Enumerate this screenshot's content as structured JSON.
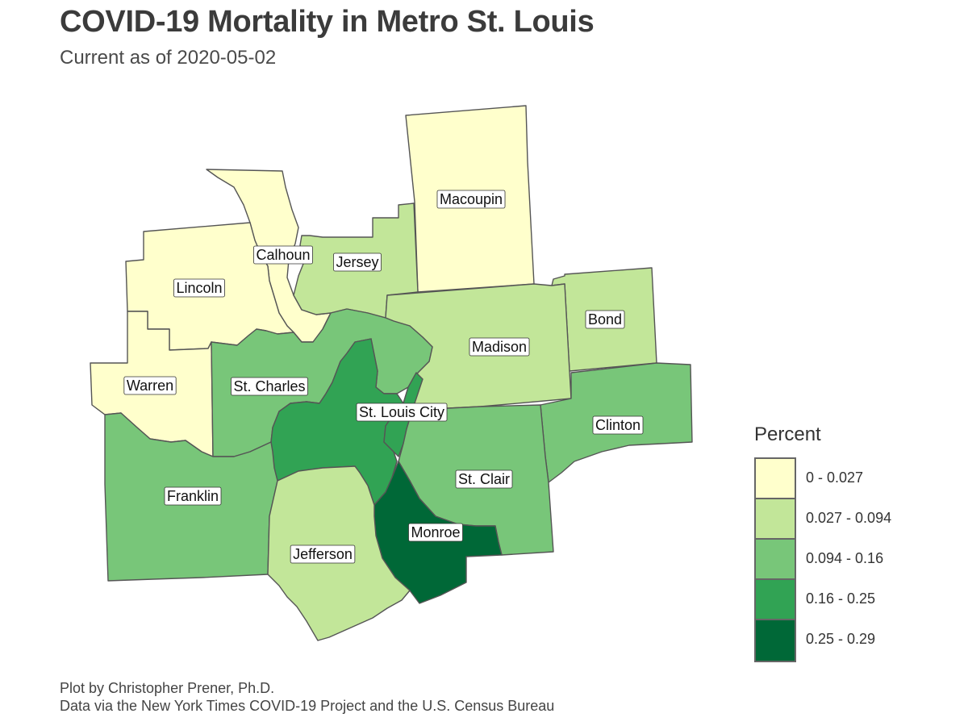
{
  "title": "COVID-19 Mortality in Metro St. Louis",
  "subtitle": "Current as of 2020-05-02",
  "caption": {
    "line1": "Plot by Christopher Prener, Ph.D.",
    "line2": "Data via the New York Times COVID-19 Project and the U.S. Census Bureau"
  },
  "legend": {
    "title": "Percent",
    "items": [
      {
        "label": "0 - 0.027",
        "color": "#ffffcc"
      },
      {
        "label": "0.027 - 0.094",
        "color": "#c2e699"
      },
      {
        "label": "0.094 - 0.16",
        "color": "#78c679"
      },
      {
        "label": "0.16 - 0.25",
        "color": "#31a354"
      },
      {
        "label": "0.25 - 0.29",
        "color": "#006837"
      }
    ]
  },
  "counties": [
    {
      "name": "Macoupin",
      "class": 0
    },
    {
      "name": "Calhoun",
      "class": 0
    },
    {
      "name": "Jersey",
      "class": 1
    },
    {
      "name": "Lincoln",
      "class": 0
    },
    {
      "name": "Bond",
      "class": 1
    },
    {
      "name": "Madison",
      "class": 1
    },
    {
      "name": "Warren",
      "class": 0
    },
    {
      "name": "St. Charles",
      "class": 2
    },
    {
      "name": "St. Louis City",
      "class": 3
    },
    {
      "name": "Clinton",
      "class": 2
    },
    {
      "name": "St. Clair",
      "class": 2
    },
    {
      "name": "Franklin",
      "class": 2
    },
    {
      "name": "Monroe",
      "class": 4
    },
    {
      "name": "Jefferson",
      "class": 1
    }
  ]
}
